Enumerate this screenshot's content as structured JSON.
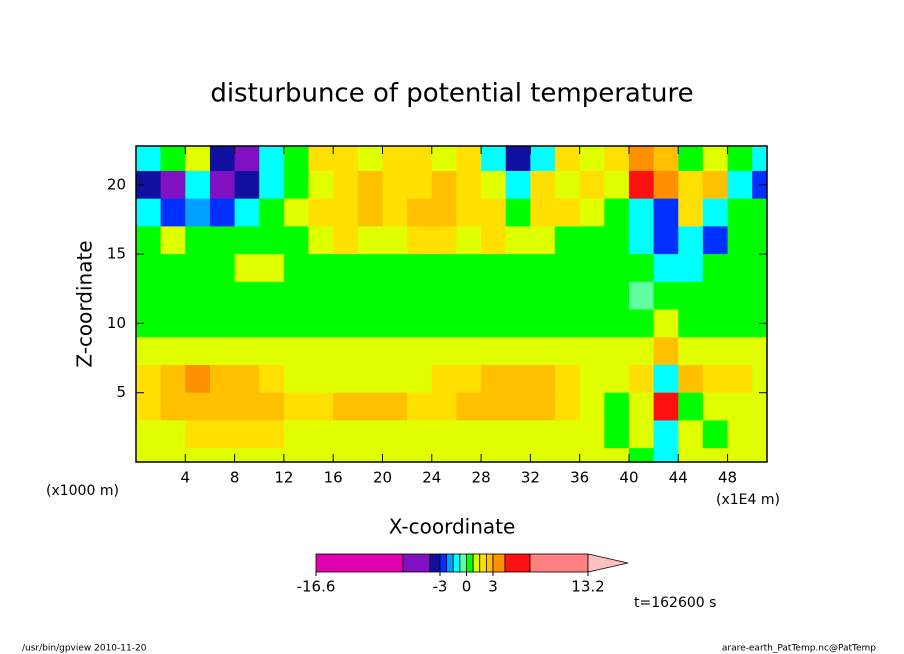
{
  "chart_data": {
    "type": "contour",
    "title": "disturbunce of potential temperature",
    "xlabel": "X-coordinate",
    "ylabel": "Z-coordinate",
    "x_unit_left": "(x1000 m)",
    "x_unit_right": "(x1E4 m)",
    "time_label": "t=162600 s",
    "footer_left": "/usr/bin/gpview  2010-11-20",
    "footer_right": "arare-earth_PatTemp.nc@PatTemp",
    "xlim": [
      0,
      51.2
    ],
    "ylim": [
      0,
      22.8
    ],
    "xticks": [
      4,
      8,
      12,
      16,
      20,
      24,
      28,
      32,
      36,
      40,
      44,
      48
    ],
    "yticks": [
      5,
      10,
      15,
      20
    ],
    "levels": [
      -16.6,
      -6,
      -4.5,
      -3,
      -2.25,
      -1.5,
      -0.75,
      0,
      0.75,
      1.5,
      2.25,
      3,
      4.5,
      6,
      13.2
    ],
    "colors": [
      "#e000b0",
      "#8010c0",
      "#1010a0",
      "#0030ff",
      "#00a0ff",
      "#00ffff",
      "#60ffa0",
      "#00ff00",
      "#e0ff00",
      "#ffe000",
      "#ffc000",
      "#ff9000",
      "#ff1010",
      "#ff8080"
    ],
    "extend_color": "#ffc0c0",
    "colorbar_ticks": [
      -16.6,
      -3,
      0,
      3,
      13.2
    ],
    "x": [
      1,
      3,
      5,
      7,
      9,
      11,
      13,
      15,
      17,
      19,
      21,
      23,
      25,
      27,
      29,
      31,
      33,
      35,
      37,
      39,
      41,
      43,
      45,
      47,
      49,
      51
    ],
    "y": [
      22,
      20,
      18,
      16,
      14,
      12,
      10,
      8,
      6,
      4,
      2,
      0
    ],
    "z": [
      [
        -1,
        0.4,
        1,
        -3.5,
        -5,
        -1,
        0.4,
        1.8,
        1.8,
        1,
        1.8,
        1.8,
        1,
        1.8,
        -1,
        -3.5,
        -1,
        1.8,
        1,
        1.8,
        3.5,
        2.6,
        0.4,
        1,
        0.4,
        -1
      ],
      [
        -3.5,
        -5,
        -1,
        -5,
        -3.5,
        -1,
        0.4,
        1,
        1.8,
        2.6,
        1.8,
        1.8,
        2.6,
        1.8,
        1,
        -1,
        1.8,
        1,
        1.8,
        1,
        5,
        3.5,
        1.8,
        2.6,
        -1,
        -2.5
      ],
      [
        -1,
        -2.5,
        -1.8,
        -2.5,
        -1,
        0.4,
        1,
        1.8,
        1.8,
        2.6,
        1.8,
        2.6,
        2.6,
        1.8,
        1.8,
        0.4,
        1.8,
        1.8,
        1,
        0.4,
        -1,
        -2.5,
        1.8,
        -1,
        0.4,
        0.4
      ],
      [
        0.4,
        1,
        0.4,
        0.4,
        0.4,
        0.4,
        0.4,
        1,
        1.8,
        1,
        1,
        1.8,
        1.8,
        1,
        1.8,
        1,
        1,
        0.4,
        0.4,
        0.4,
        -1,
        -2.5,
        -1,
        -2.5,
        0.4,
        0.4
      ],
      [
        0.4,
        0.4,
        0.4,
        0.4,
        1,
        1,
        0.4,
        0.4,
        0.4,
        0.4,
        0.4,
        0.4,
        0.4,
        0.4,
        0.4,
        0.4,
        0.4,
        0.4,
        0.4,
        0.4,
        0.4,
        -1,
        -1,
        0.4,
        0.4,
        0.4
      ],
      [
        0.4,
        0.4,
        0.4,
        0.4,
        0.4,
        0.4,
        0.4,
        0.4,
        0.4,
        0.4,
        0.4,
        0.4,
        0.4,
        0.4,
        0.4,
        0.4,
        0.4,
        0.4,
        0.4,
        0.4,
        -0.3,
        0.4,
        0.4,
        0.4,
        0.4,
        0.4
      ],
      [
        0.4,
        0.4,
        0.4,
        0.4,
        0.4,
        0.4,
        0.4,
        0.4,
        0.4,
        0.4,
        0.4,
        0.4,
        0.4,
        0.4,
        0.4,
        0.4,
        0.4,
        0.4,
        0.4,
        0.4,
        0.4,
        1,
        0.4,
        0.4,
        0.4,
        0.4
      ],
      [
        1,
        1,
        1,
        1,
        1,
        1,
        1,
        1,
        1,
        1,
        1,
        1,
        1,
        1,
        1,
        1,
        1,
        1,
        1,
        1,
        1,
        2.6,
        1,
        1,
        1,
        1
      ],
      [
        1.8,
        2.6,
        3.5,
        2.6,
        2.6,
        1.8,
        1,
        1,
        1,
        1,
        1,
        1,
        1.8,
        1.8,
        2.6,
        2.6,
        2.6,
        1.8,
        1,
        1,
        1.8,
        -1,
        2.6,
        1.8,
        1.8,
        1
      ],
      [
        1.8,
        2.6,
        2.6,
        2.6,
        2.6,
        2.6,
        1.8,
        1.8,
        2.6,
        2.6,
        2.6,
        1.8,
        1.8,
        2.6,
        2.6,
        2.6,
        2.6,
        1.8,
        1,
        0.4,
        1,
        5,
        0.4,
        1,
        1,
        1
      ],
      [
        1,
        1,
        1.8,
        1.8,
        1.8,
        1.8,
        1,
        1,
        1,
        1,
        1,
        1,
        1,
        1,
        1,
        1,
        1,
        1,
        1,
        0.4,
        1,
        -1,
        1,
        0.4,
        1,
        1
      ],
      [
        1,
        1,
        1,
        1,
        1,
        1,
        1,
        1,
        1,
        1,
        1,
        1,
        1,
        1,
        1,
        1,
        1,
        1,
        1,
        1,
        0.4,
        -1,
        1,
        1,
        1,
        1
      ]
    ]
  }
}
